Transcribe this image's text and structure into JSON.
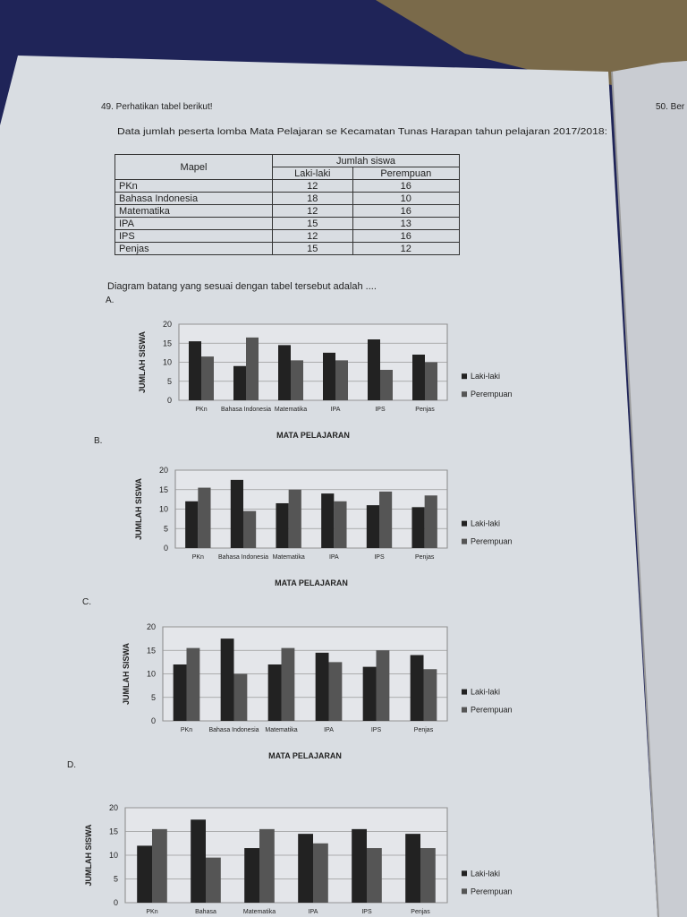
{
  "header": {
    "number": "49. Perhatikan tabel berikut!",
    "intro": "Data jumlah peserta lomba Mata Pelajaran se Kecamatan Tunas Harapan tahun pelajaran 2017/2018:",
    "next": "50. Ber"
  },
  "table": {
    "head": [
      "Mapel",
      "Jumlah siswa"
    ],
    "subhead": [
      "Laki-laki",
      "Perempuan"
    ],
    "rows": [
      [
        "PKn",
        "12",
        "16"
      ],
      [
        "Bahasa Indonesia",
        "18",
        "10"
      ],
      [
        "Matematika",
        "12",
        "16"
      ],
      [
        "IPA",
        "15",
        "13"
      ],
      [
        "IPS",
        "12",
        "16"
      ],
      [
        "Penjas",
        "15",
        "12"
      ]
    ]
  },
  "prompt": "Diagram batang yang sesuai dengan tabel tersebut adalah ....",
  "options": [
    {
      "label": "A.",
      "chart": {
        "type": "bar",
        "categories": [
          "PKn",
          "Bahasa Indonesia",
          "Matematika",
          "IPA",
          "IPS",
          "Penjas"
        ],
        "series": [
          {
            "name": "Laki-laki",
            "color": "#222222",
            "values": [
              15.5,
              9,
              14.5,
              12.5,
              16,
              12
            ]
          },
          {
            "name": "Perempuan",
            "color": "#555555",
            "values": [
              11.5,
              16.5,
              10.5,
              10.5,
              8,
              10
            ]
          }
        ],
        "ylim": [
          0,
          20
        ],
        "yticks": [
          0,
          5,
          10,
          15,
          20
        ],
        "y_label": "JUMLAH SISWA",
        "x_label": "MATA PELAJARAN",
        "grid": true
      }
    },
    {
      "label": "B.",
      "chart": {
        "type": "bar",
        "categories": [
          "PKn",
          "Bahasa Indonesia",
          "Matematika",
          "IPA",
          "IPS",
          "Penjas"
        ],
        "series": [
          {
            "name": "Laki-laki",
            "color": "#222222",
            "values": [
              12,
              17.5,
              11.5,
              14,
              11,
              10.5
            ]
          },
          {
            "name": "Perempuan",
            "color": "#555555",
            "values": [
              15.5,
              9.5,
              15,
              12,
              14.5,
              13.5
            ]
          }
        ],
        "ylim": [
          0,
          20
        ],
        "yticks": [
          0,
          5,
          10,
          15,
          20
        ],
        "y_label": "JUMLAH SISWA",
        "x_label": "MATA PELAJARAN",
        "grid": true
      }
    },
    {
      "label": "C.",
      "chart": {
        "type": "bar",
        "categories": [
          "PKn",
          "Bahasa Indonesia",
          "Matematika",
          "IPA",
          "IPS",
          "Penjas"
        ],
        "series": [
          {
            "name": "Laki-laki",
            "color": "#222222",
            "values": [
              12,
              17.5,
              12,
              14.5,
              11.5,
              14
            ]
          },
          {
            "name": "Perempuan",
            "color": "#555555",
            "values": [
              15.5,
              10,
              15.5,
              12.5,
              15,
              11
            ]
          }
        ],
        "ylim": [
          0,
          20
        ],
        "yticks": [
          0,
          5,
          10,
          15,
          20
        ],
        "y_label": "JUMLAH SISWA",
        "x_label": "MATA PELAJARAN",
        "grid": true
      }
    },
    {
      "label": "D.",
      "chart": {
        "type": "bar",
        "categories": [
          "PKn",
          "Bahasa",
          "Matematika",
          "IPA",
          "IPS",
          "Penjas"
        ],
        "series": [
          {
            "name": "Laki-laki",
            "color": "#222222",
            "values": [
              12,
              17.5,
              11.5,
              14.5,
              15.5,
              14.5
            ]
          },
          {
            "name": "Perempuan",
            "color": "#555555",
            "values": [
              15.5,
              9.5,
              15.5,
              12.5,
              11.5,
              11.5
            ]
          }
        ],
        "ylim": [
          0,
          20
        ],
        "yticks": [
          0,
          5,
          10,
          15,
          20
        ],
        "y_label": "JUMLAH SISWA",
        "grid": true
      }
    }
  ]
}
